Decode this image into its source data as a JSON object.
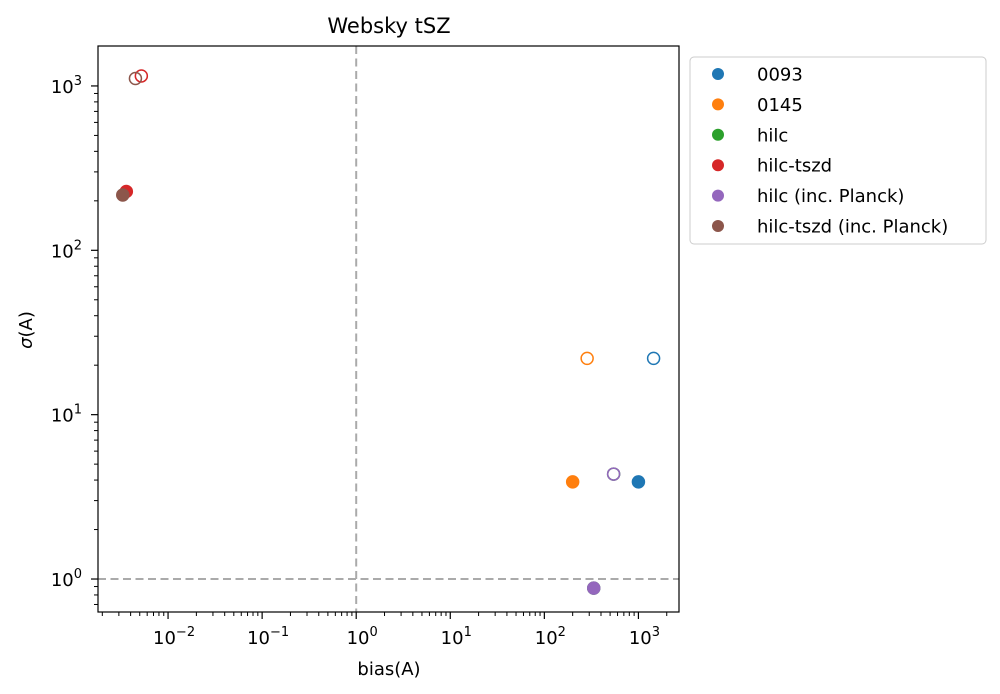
{
  "chart_data": {
    "type": "scatter",
    "title": "Websky tSZ",
    "xlabel": "bias(A)",
    "ylabel_symbol": "σ",
    "ylabel_arg": "(A)",
    "xscale": "log",
    "yscale": "log",
    "xlim": [
      0.0018,
      2700
    ],
    "ylim": [
      0.63,
      1750
    ],
    "xticks": [
      {
        "value": 0.01,
        "base": "10",
        "exp": "−2"
      },
      {
        "value": 0.1,
        "base": "10",
        "exp": "−1"
      },
      {
        "value": 1,
        "base": "10",
        "exp": "0"
      },
      {
        "value": 10,
        "base": "10",
        "exp": "1"
      },
      {
        "value": 100,
        "base": "10",
        "exp": "2"
      },
      {
        "value": 1000,
        "base": "10",
        "exp": "3"
      }
    ],
    "yticks": [
      {
        "value": 1,
        "base": "10",
        "exp": "0"
      },
      {
        "value": 10,
        "base": "10",
        "exp": "1"
      },
      {
        "value": 100,
        "base": "10",
        "exp": "2"
      },
      {
        "value": 1000,
        "base": "10",
        "exp": "3"
      }
    ],
    "reference_lines": [
      {
        "orientation": "vertical",
        "value": 1,
        "color": "#aaaaaa",
        "style": "dashed"
      },
      {
        "orientation": "horizontal",
        "value": 1,
        "color": "#aaaaaa",
        "style": "dashed"
      }
    ],
    "grid": false,
    "legend_position": "outside-right-top",
    "series": [
      {
        "name": "0093",
        "color": "#1f77b4",
        "points": [
          {
            "x": 1000,
            "y": 3.9,
            "filled": true
          },
          {
            "x": 1450,
            "y": 22,
            "filled": false
          }
        ]
      },
      {
        "name": "0145",
        "color": "#ff7f0e",
        "points": [
          {
            "x": 200,
            "y": 3.9,
            "filled": true
          },
          {
            "x": 285,
            "y": 22,
            "filled": false
          }
        ]
      },
      {
        "name": "hilc",
        "color": "#2ca02c",
        "points": [
          {
            "x": 335,
            "y": 0.88,
            "filled": true
          },
          {
            "x": 545,
            "y": 4.35,
            "filled": false
          }
        ]
      },
      {
        "name": "hilc-tszd",
        "color": "#d62728",
        "points": [
          {
            "x": 0.0036,
            "y": 228,
            "filled": true
          },
          {
            "x": 0.0052,
            "y": 1150,
            "filled": false
          }
        ]
      },
      {
        "name": "hilc (inc. Planck)",
        "color": "#9467bd",
        "points": [
          {
            "x": 335,
            "y": 0.88,
            "filled": true
          },
          {
            "x": 545,
            "y": 4.35,
            "filled": false
          }
        ]
      },
      {
        "name": "hilc-tszd (inc. Planck)",
        "color": "#8c564b",
        "points": [
          {
            "x": 0.0033,
            "y": 217,
            "filled": true
          },
          {
            "x": 0.0045,
            "y": 1110,
            "filled": false
          }
        ]
      }
    ]
  }
}
